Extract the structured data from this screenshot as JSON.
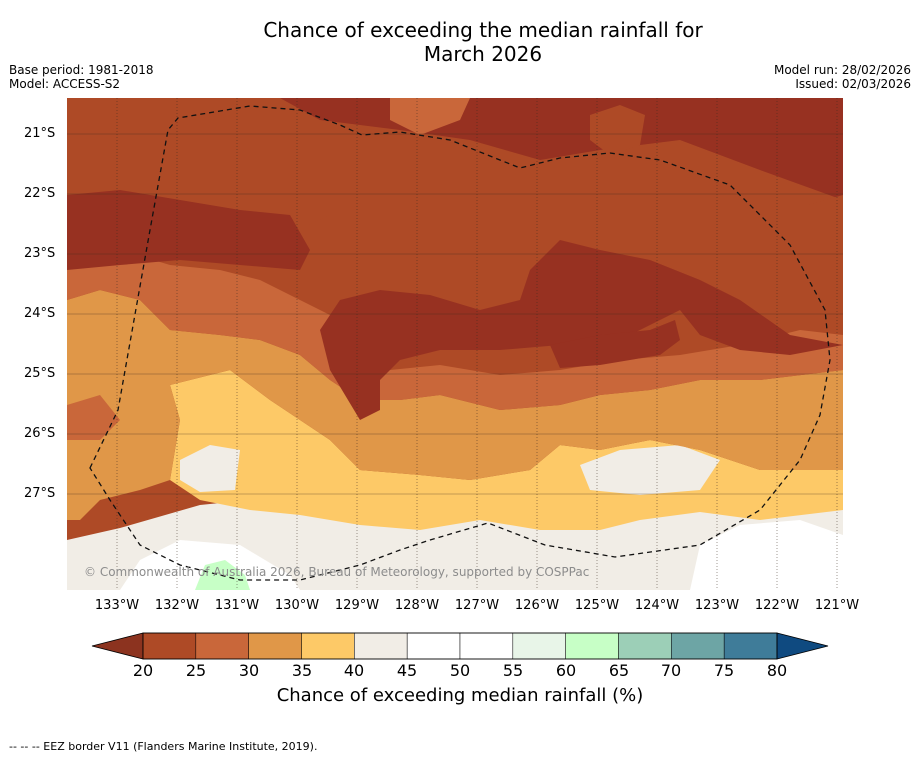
{
  "title_line1": "Chance of exceeding the median rainfall for",
  "title_line2": "March 2026",
  "base_period": "Base period: 1981-2018",
  "model": "Model: ACCESS-S2",
  "model_run": "Model run: 28/02/2026",
  "issued": "Issued: 02/03/2026",
  "copyright": "© Commonwealth of Australia 2026, Bureau of Meteorology, supported by COSPPac",
  "lat_labels": [
    "21°S",
    "22°S",
    "23°S",
    "24°S",
    "25°S",
    "26°S",
    "27°S"
  ],
  "lon_labels": [
    "133°W",
    "132°W",
    "131°W",
    "130°W",
    "129°W",
    "128°W",
    "127°W",
    "126°W",
    "125°W",
    "124°W",
    "123°W",
    "122°W",
    "121°W"
  ],
  "colorbar": {
    "ticks": [
      "20",
      "25",
      "30",
      "35",
      "40",
      "45",
      "50",
      "55",
      "60",
      "65",
      "70",
      "75",
      "80"
    ],
    "colors": [
      "#ae4a26",
      "#c9673a",
      "#e09748",
      "#fdc967",
      "#f1ede6",
      "#ffffff",
      "#ffffff",
      "#e8f5e8",
      "#c7ffc6",
      "#9ccfb7",
      "#6da5a5",
      "#3f7c99"
    ],
    "under_color": "#8c331f",
    "over_color": "#0f4a80",
    "title": "Chance of exceeding median rainfall (%)"
  },
  "map_colors": {
    "c15": "#973121",
    "c20": "#ae4a26",
    "c25": "#c9673a",
    "c30": "#e09748",
    "c35": "#fdc967",
    "c40": "#f1ede6",
    "c45": "#ffffff",
    "c60": "#c7ffc6"
  },
  "footnote": "-- -- -- EEZ border V11 (Flanders Marine Institute, 2019)."
}
